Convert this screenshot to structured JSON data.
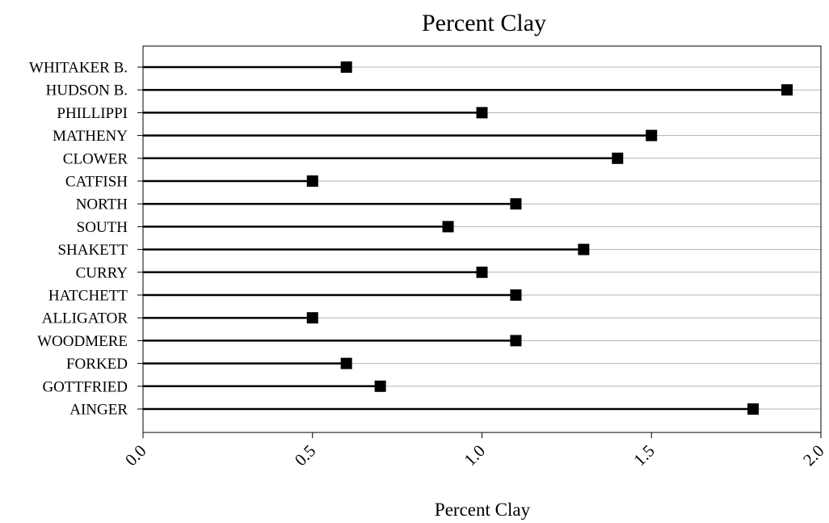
{
  "chart_data": {
    "type": "dot",
    "title": "Percent Clay",
    "xlabel": "Percent Clay",
    "ylabel": "",
    "xlim": [
      0.0,
      2.0
    ],
    "xticks": [
      "0.0",
      "0.5",
      "1.0",
      "1.5",
      "2.0"
    ],
    "grid": true,
    "categories": [
      "WHITAKER B.",
      "HUDSON B.",
      "PHILLIPPI",
      "MATHENY",
      "CLOWER",
      "CATFISH",
      "NORTH",
      "SOUTH",
      "SHAKETT",
      "CURRY",
      "HATCHETT",
      "ALLIGATOR",
      "WOODMERE",
      "FORKED",
      "GOTTFRIED",
      "AINGER"
    ],
    "values": [
      0.6,
      1.9,
      1.0,
      1.5,
      1.4,
      0.5,
      1.1,
      0.9,
      1.3,
      1.0,
      1.1,
      0.5,
      1.1,
      0.6,
      0.7,
      1.8
    ],
    "colors": {
      "marker": "#000000",
      "stem": "#000000",
      "grid": "#b3b3b3",
      "frame": "#000000"
    }
  }
}
